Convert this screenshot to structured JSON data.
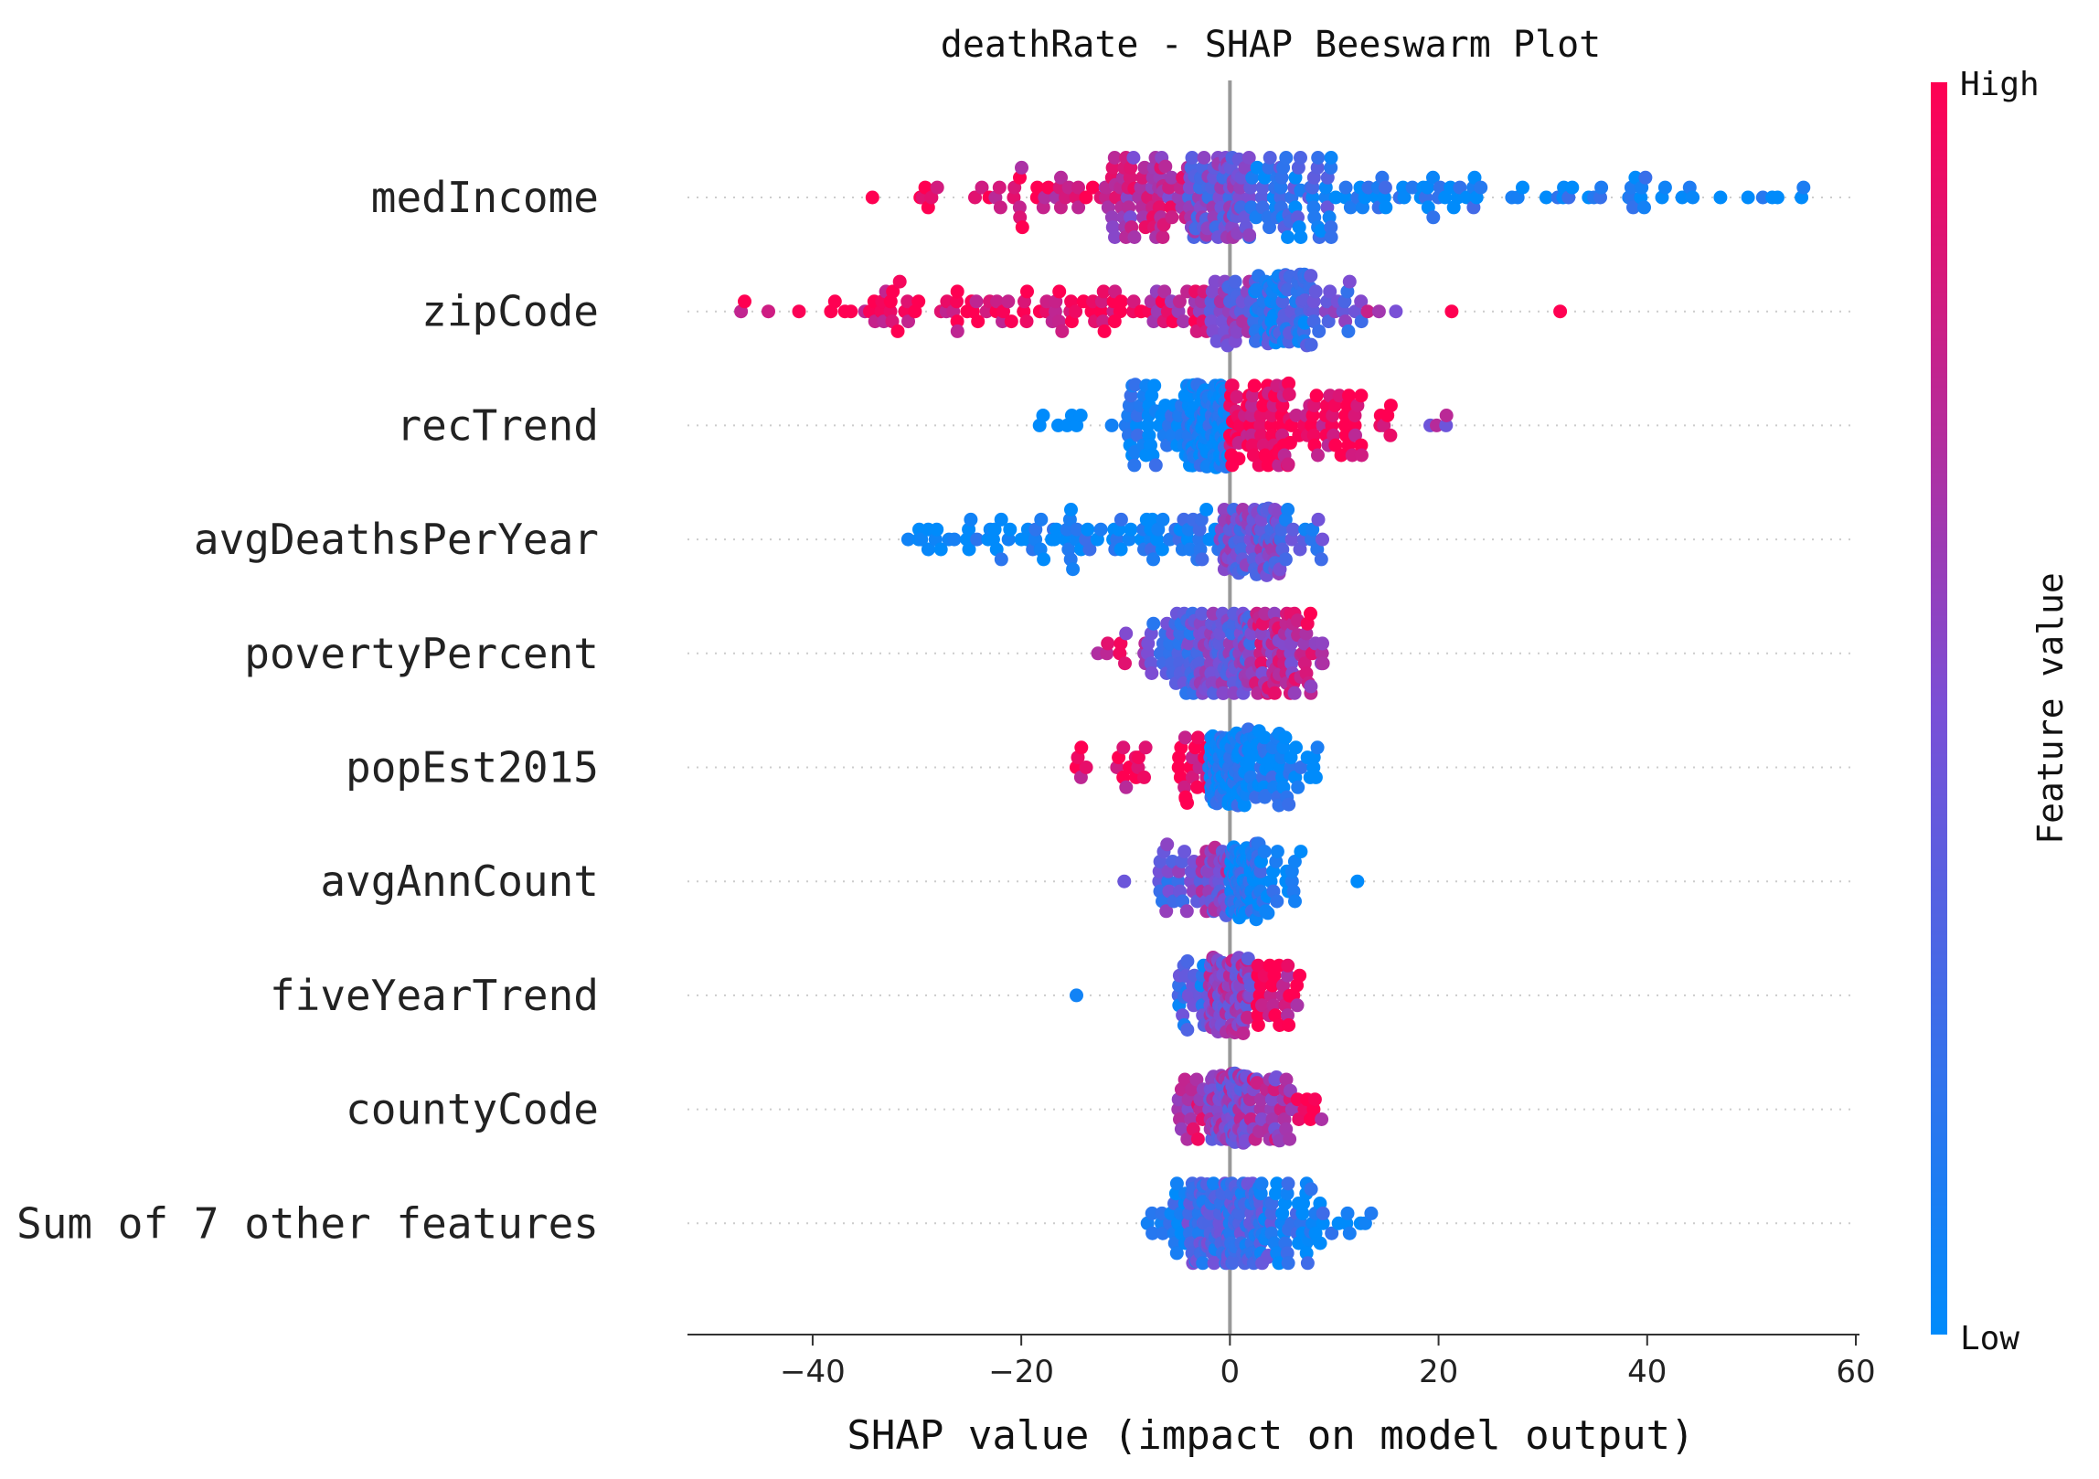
{
  "chart_data": {
    "type": "scatter",
    "subtype": "beeswarm",
    "title": "deathRate - SHAP Beeswarm Plot",
    "xlabel": "SHAP value (impact on model output)",
    "xlim": [
      -52,
      60
    ],
    "xticks": [
      -40,
      -20,
      0,
      20,
      40,
      60
    ],
    "xtick_labels": [
      "−40",
      "−20",
      "0",
      "20",
      "40",
      "60"
    ],
    "colorbar": {
      "title": "Feature value",
      "high_label": "High",
      "low_label": "Low",
      "high_color": "#ff0052",
      "low_color": "#008bfb"
    },
    "features": [
      {
        "name": "medIncome",
        "spread": 1.0,
        "clusters": [
          [
            -36,
            -26,
            0.97,
            7
          ],
          [
            -26,
            -12,
            0.9,
            30
          ],
          [
            -12,
            -4,
            0.72,
            70
          ],
          [
            -4,
            2,
            0.45,
            85
          ],
          [
            2,
            10,
            0.22,
            60
          ],
          [
            10,
            25,
            0.05,
            40
          ],
          [
            25,
            40,
            0.02,
            22
          ],
          [
            40,
            56,
            0.0,
            12
          ]
        ]
      },
      {
        "name": "zipCode",
        "spread": 0.95,
        "clusters": [
          [
            -47,
            -35,
            0.99,
            8
          ],
          [
            -35,
            -20,
            0.97,
            40
          ],
          [
            -20,
            -8,
            0.95,
            35
          ],
          [
            -8,
            -2,
            0.8,
            25
          ],
          [
            -2,
            2,
            0.5,
            35
          ],
          [
            2,
            8,
            0.2,
            90
          ],
          [
            8,
            13,
            0.4,
            20
          ],
          [
            13,
            16,
            0.6,
            3
          ],
          [
            21,
            22,
            0.99,
            1
          ],
          [
            31,
            32,
            0.99,
            1
          ]
        ]
      },
      {
        "name": "recTrend",
        "spread": 1.05,
        "clusters": [
          [
            -20,
            -10,
            0.0,
            8
          ],
          [
            -10,
            -4,
            0.02,
            50
          ],
          [
            -4,
            0,
            0.03,
            120
          ],
          [
            0,
            6,
            0.96,
            70
          ],
          [
            6,
            13,
            0.96,
            40
          ],
          [
            13,
            16,
            0.95,
            6
          ],
          [
            19,
            21,
            0.55,
            4
          ]
        ]
      },
      {
        "name": "avgDeathsPerYear",
        "spread": 0.9,
        "clusters": [
          [
            -31,
            -20,
            0.01,
            25
          ],
          [
            -20,
            -8,
            0.02,
            40
          ],
          [
            -8,
            -1,
            0.05,
            30
          ],
          [
            -1,
            5,
            0.45,
            90
          ],
          [
            5,
            9,
            0.25,
            15
          ]
        ]
      },
      {
        "name": "povertyPercent",
        "spread": 1.0,
        "clusters": [
          [
            -13,
            -8,
            0.75,
            10
          ],
          [
            -8,
            -3,
            0.35,
            50
          ],
          [
            -3,
            2,
            0.45,
            90
          ],
          [
            2,
            6,
            0.7,
            60
          ],
          [
            6,
            9,
            0.8,
            25
          ]
        ]
      },
      {
        "name": "popEst2015",
        "spread": 0.95,
        "clusters": [
          [
            -17,
            -12,
            0.97,
            5
          ],
          [
            -12,
            -8,
            0.95,
            12
          ],
          [
            -5,
            -2,
            0.95,
            20
          ],
          [
            -2,
            2,
            0.05,
            110
          ],
          [
            2,
            6,
            0.04,
            40
          ],
          [
            6,
            9,
            0.02,
            10
          ]
        ]
      },
      {
        "name": "avgAnnCount",
        "spread": 0.95,
        "clusters": [
          [
            -11,
            -10,
            0.3,
            1
          ],
          [
            -7,
            -3,
            0.38,
            25
          ],
          [
            -3,
            0,
            0.55,
            40
          ],
          [
            0,
            3,
            0.1,
            90
          ],
          [
            3,
            7,
            0.05,
            20
          ],
          [
            12,
            13,
            0.02,
            1
          ]
        ]
      },
      {
        "name": "fiveYearTrend",
        "spread": 0.95,
        "clusters": [
          [
            -15,
            -14,
            0.02,
            1
          ],
          [
            -5,
            -2,
            0.25,
            25
          ],
          [
            -2,
            2,
            0.6,
            100
          ],
          [
            2,
            7,
            0.9,
            30
          ]
        ]
      },
      {
        "name": "countyCode",
        "spread": 0.9,
        "clusters": [
          [
            -5,
            -2,
            0.75,
            20
          ],
          [
            -2,
            2,
            0.55,
            100
          ],
          [
            2,
            6,
            0.65,
            35
          ],
          [
            6,
            9,
            0.85,
            8
          ]
        ]
      },
      {
        "name": "Sum of 7 other features",
        "spread": 1.0,
        "clusters": [
          [
            -8,
            -4,
            0.1,
            20
          ],
          [
            -4,
            0,
            0.3,
            70
          ],
          [
            0,
            4,
            0.25,
            80
          ],
          [
            4,
            9,
            0.08,
            40
          ],
          [
            9,
            14,
            0.02,
            8
          ]
        ]
      }
    ]
  }
}
